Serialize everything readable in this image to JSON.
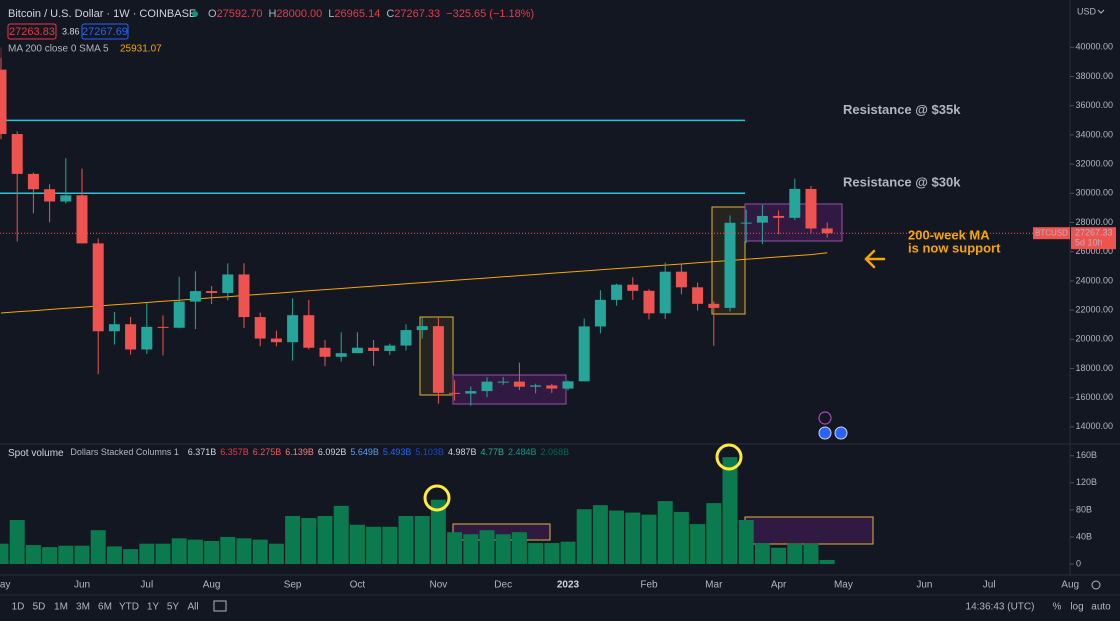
{
  "header": {
    "symbol": "Bitcoin / U.S. Dollar · 1W · COINBASE",
    "ohlc": [
      {
        "key": "O",
        "value": "27592.70"
      },
      {
        "key": "H",
        "value": "28000.00"
      },
      {
        "key": "L",
        "value": "26965.14"
      },
      {
        "key": "C",
        "value": "27267.33"
      }
    ],
    "change": "−325.65 (−1.18%)",
    "bid": "27263.83",
    "spread": "3.86",
    "ask": "27267.69",
    "ma_value": "25931.07",
    "currency": "USD"
  },
  "chart_data": {
    "type": "candlestick",
    "categories": [
      "May",
      null,
      null,
      null,
      null,
      "Jun",
      null,
      null,
      null,
      "Jul",
      null,
      null,
      null,
      "Aug",
      null,
      null,
      null,
      null,
      "Sep",
      null,
      null,
      null,
      "Oct",
      null,
      null,
      null,
      null,
      "Nov",
      null,
      null,
      null,
      "Dec",
      null,
      null,
      null,
      "2023",
      null,
      null,
      null,
      null,
      "Feb",
      null,
      null,
      null,
      "Mar",
      null,
      null,
      null,
      "Apr",
      null,
      null,
      null,
      "May",
      null,
      null,
      null,
      null,
      "Jun",
      null,
      null,
      null,
      "Jul",
      null,
      null,
      null,
      null,
      "Aug"
    ],
    "open": [
      38470,
      34060,
      31330,
      30280,
      29440,
      29860,
      26570,
      20550,
      21030,
      19300,
      20850,
      20790,
      22580,
      23300,
      23170,
      24440,
      21520,
      20050,
      19800,
      21650,
      19420,
      18800,
      19050,
      19420,
      19200,
      19570,
      20630,
      20900,
      16330,
      16280,
      16450,
      17100,
      17100,
      16750,
      16840,
      16620,
      17120,
      20880,
      22700,
      23740,
      23320,
      21780,
      24630,
      23560,
      22430,
      22150,
      27980,
      27990,
      28450,
      28320,
      30300,
      27592.7,
      null,
      null,
      null,
      null,
      null,
      null,
      null,
      null,
      null,
      null,
      null,
      null,
      null,
      null,
      null
    ],
    "high": [
      40000,
      34250,
      31420,
      30620,
      32400,
      31690,
      26900,
      21870,
      21530,
      22500,
      21640,
      24280,
      24660,
      23650,
      25200,
      25210,
      21830,
      20580,
      22800,
      22700,
      19950,
      20480,
      20480,
      19950,
      19700,
      21020,
      21480,
      21470,
      17190,
      16770,
      17400,
      17420,
      18400,
      16960,
      16950,
      17180,
      21420,
      23360,
      23810,
      24250,
      23440,
      25250,
      25130,
      23890,
      22600,
      28480,
      28880,
      29200,
      28820,
      31000,
      30500,
      28000.0,
      null,
      null,
      null,
      null,
      null,
      null,
      null,
      null,
      null,
      null,
      null,
      null,
      null,
      null,
      null
    ],
    "low": [
      33700,
      26700,
      28630,
      28020,
      29300,
      26560,
      17600,
      19640,
      18950,
      19000,
      18900,
      20760,
      20700,
      22410,
      22670,
      20770,
      19520,
      19520,
      18540,
      19310,
      18150,
      18470,
      19050,
      18180,
      18930,
      19230,
      20050,
      15590,
      15800,
      15450,
      16040,
      16880,
      16520,
      16300,
      16330,
      16500,
      17120,
      20410,
      22300,
      22700,
      21360,
      21390,
      23080,
      21970,
      19550,
      21900,
      26600,
      26520,
      27200,
      28170,
      27260,
      26965.14,
      null,
      null,
      null,
      null,
      null,
      null,
      null,
      null,
      null,
      null,
      null,
      null,
      null,
      null,
      null
    ],
    "close": [
      34060,
      31330,
      30280,
      29440,
      29860,
      26570,
      20550,
      21030,
      19300,
      20850,
      20790,
      22580,
      23300,
      23170,
      24440,
      21520,
      20050,
      19800,
      21650,
      19420,
      18800,
      19050,
      19420,
      19200,
      19570,
      20630,
      20900,
      16330,
      16280,
      16450,
      17100,
      17100,
      16750,
      16840,
      16620,
      17120,
      20880,
      22700,
      23740,
      23320,
      21780,
      24630,
      23560,
      22430,
      22150,
      27980,
      27990,
      28450,
      28320,
      30300,
      27590,
      27267.33,
      null,
      null,
      null,
      null,
      null,
      null,
      null,
      null,
      null,
      null,
      null,
      null,
      null,
      null,
      null
    ],
    "up_color": "#26a69a",
    "down_color": "#ef5350",
    "ylim": [
      13100,
      42900
    ],
    "yticks": [
      {
        "value": 14000,
        "label": "14000.00"
      },
      {
        "value": 16000,
        "label": "16000.00"
      },
      {
        "value": 18000,
        "label": "18000.00"
      },
      {
        "value": 20000,
        "label": "20000.00"
      },
      {
        "value": 22000,
        "label": "22000.00"
      },
      {
        "value": 24000,
        "label": "24000.00"
      },
      {
        "value": 26000,
        "label": "26000.00"
      },
      {
        "value": 28000,
        "label": "28000.00"
      },
      {
        "value": 30000,
        "label": "30000.00"
      },
      {
        "value": 32000,
        "label": "32000.00"
      },
      {
        "value": 34000,
        "label": "34000.00"
      },
      {
        "value": 36000,
        "label": "36000.00"
      },
      {
        "value": 38000,
        "label": "38000.00"
      },
      {
        "value": 40000,
        "label": "40000.00"
      }
    ],
    "grid": false,
    "ma": {
      "name": "MA 200 close 0 SMA 5",
      "color": "#f7a600",
      "values": [
        21800,
        21880,
        21960,
        22040,
        22120,
        22200,
        22280,
        22360,
        22440,
        22520,
        22600,
        22680,
        22760,
        22840,
        22920,
        23000,
        23080,
        23160,
        23240,
        23320,
        23400,
        23480,
        23560,
        23640,
        23720,
        23800,
        23880,
        23960,
        24040,
        24120,
        24200,
        24280,
        24360,
        24440,
        24520,
        24600,
        24680,
        24760,
        24840,
        24920,
        25000,
        25080,
        25160,
        25240,
        25320,
        25400,
        25480,
        25560,
        25640,
        25720,
        25800,
        25931.07,
        null,
        null,
        null,
        null,
        null,
        null,
        null,
        null,
        null,
        null,
        null,
        null,
        null,
        null,
        null
      ]
    },
    "hlines": [
      {
        "value": 35000,
        "label": "Resistance @ $35k",
        "color": "#26c6da"
      },
      {
        "value": 30000,
        "label": "Resistance @ $30k",
        "color": "#26c6da"
      }
    ],
    "support_note": [
      "200-week MA",
      "is now support"
    ],
    "last_tag": {
      "symbol": "BTCUSD",
      "countdown": "5d 10h"
    },
    "volume": {
      "title": "Spot volume",
      "subtitle": "Dollars Stacked Columns 1",
      "color": "#0b7a4f",
      "values": [
        30,
        65,
        28,
        25,
        27,
        27,
        50,
        26,
        22,
        30,
        30,
        38,
        36,
        34,
        40,
        38,
        36,
        30,
        71,
        68,
        71,
        86,
        58,
        55,
        55,
        71,
        71,
        95,
        47,
        44,
        50,
        44,
        47,
        31,
        31,
        33,
        81,
        87,
        79,
        76,
        73,
        93,
        77,
        59,
        90,
        158,
        65,
        31,
        24,
        30,
        30,
        6,
        null,
        null,
        null,
        null,
        null,
        null,
        null,
        null,
        null,
        null,
        null,
        null,
        null,
        null,
        null
      ],
      "ylim": [
        0,
        170
      ],
      "yticks": [
        0,
        {
          "value": 40,
          "label": "40B"
        },
        {
          "value": 80,
          "label": "80B"
        },
        {
          "value": 120,
          "label": "120B"
        },
        {
          "value": 160,
          "label": "160B"
        }
      ],
      "legend": [
        {
          "label": "6.371B",
          "color": "#d1d4dc"
        },
        {
          "label": "6.357B",
          "color": "#f23645"
        },
        {
          "label": "6.275B",
          "color": "#f7525f"
        },
        {
          "label": "6.139B",
          "color": "#f77c80"
        },
        {
          "label": "6.092B",
          "color": "#d1d4dc"
        },
        {
          "label": "5.649B",
          "color": "#5b9cf6"
        },
        {
          "label": "5.493B",
          "color": "#2962ff"
        },
        {
          "label": "5.103B",
          "color": "#1848cc"
        },
        {
          "label": "4.987B",
          "color": "#d1d4dc"
        },
        {
          "label": "4.77B",
          "color": "#22ab94"
        },
        {
          "label": "2.484B",
          "color": "#089981"
        },
        {
          "label": "2.068B",
          "color": "#056656"
        }
      ]
    }
  },
  "toolbar": {
    "ranges": [
      "1D",
      "5D",
      "1M",
      "3M",
      "6M",
      "YTD",
      "1Y",
      "5Y",
      "All"
    ],
    "time": "14:36:43 (UTC)",
    "options": [
      "%",
      "log",
      "auto"
    ]
  }
}
